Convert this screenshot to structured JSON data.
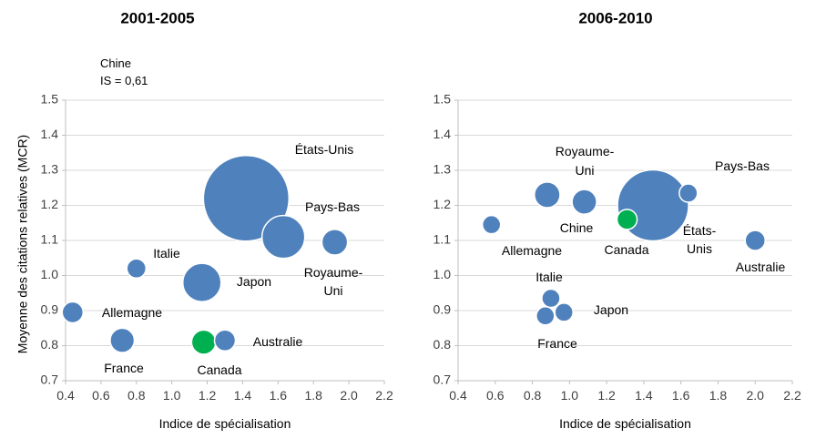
{
  "chart_data": [
    {
      "type": "scatter",
      "title": "2001-2005",
      "xlabel": "Indice de spécialisation",
      "ylabel": "Moyenne des citations relatives (MCR)",
      "xlim": [
        0.4,
        2.2
      ],
      "ylim": [
        0.7,
        1.5
      ],
      "xticks": [
        "0.4",
        "0.6",
        "0.8",
        "1.0",
        "1.2",
        "1.4",
        "1.6",
        "1.8",
        "2.0",
        "2.2"
      ],
      "yticks": [
        "0.7",
        "0.8",
        "0.9",
        "1.0",
        "1.1",
        "1.2",
        "1.3",
        "1.4",
        "1.5"
      ],
      "grid": true,
      "note_lines": [
        "Chine",
        "IS = 0,61"
      ],
      "points": [
        {
          "label": "États-Unis",
          "x": 1.42,
          "y": 1.22,
          "size": 1.0,
          "color": "#4f81bd"
        },
        {
          "label": "Pays-Bas",
          "x": 1.63,
          "y": 1.11,
          "size": 0.25,
          "color": "#4f81bd"
        },
        {
          "label": "Royaume-Uni",
          "x": 1.92,
          "y": 1.095,
          "size": 0.09,
          "color": "#4f81bd"
        },
        {
          "label": "Japon",
          "x": 1.17,
          "y": 0.98,
          "size": 0.2,
          "color": "#4f81bd"
        },
        {
          "label": "Italie",
          "x": 0.8,
          "y": 1.02,
          "size": 0.05,
          "color": "#4f81bd"
        },
        {
          "label": "Allemagne",
          "x": 0.44,
          "y": 0.895,
          "size": 0.06,
          "color": "#4f81bd"
        },
        {
          "label": "France",
          "x": 0.72,
          "y": 0.815,
          "size": 0.08,
          "color": "#4f81bd"
        },
        {
          "label": "Canada",
          "x": 1.18,
          "y": 0.81,
          "size": 0.08,
          "color": "#00b050"
        },
        {
          "label": "Australie",
          "x": 1.3,
          "y": 0.815,
          "size": 0.06,
          "color": "#4f81bd"
        }
      ]
    },
    {
      "type": "scatter",
      "title": "2006-2010",
      "xlabel": "Indice de spécialisation",
      "ylabel": "",
      "xlim": [
        0.4,
        2.2
      ],
      "ylim": [
        0.7,
        1.5
      ],
      "xticks": [
        "0.4",
        "0.6",
        "0.8",
        "1.0",
        "1.2",
        "1.4",
        "1.6",
        "1.8",
        "2.0",
        "2.2"
      ],
      "yticks": [
        "0.7",
        "0.8",
        "0.9",
        "1.0",
        "1.1",
        "1.2",
        "1.3",
        "1.4",
        "1.5"
      ],
      "grid": true,
      "points": [
        {
          "label": "États-Unis",
          "x": 1.45,
          "y": 1.2,
          "size": 1.0,
          "color": "#4f81bd"
        },
        {
          "label": "Royaume-Uni",
          "x": 0.88,
          "y": 1.23,
          "size": 0.13,
          "color": "#4f81bd"
        },
        {
          "label": "Chine",
          "x": 1.08,
          "y": 1.21,
          "size": 0.12,
          "color": "#4f81bd"
        },
        {
          "label": "Canada",
          "x": 1.31,
          "y": 1.16,
          "size": 0.08,
          "color": "#00b050"
        },
        {
          "label": "Pays-Bas",
          "x": 1.64,
          "y": 1.235,
          "size": 0.05,
          "color": "#4f81bd"
        },
        {
          "label": "Allemagne",
          "x": 0.58,
          "y": 1.145,
          "size": 0.05,
          "color": "#4f81bd"
        },
        {
          "label": "Australie",
          "x": 2.0,
          "y": 1.1,
          "size": 0.08,
          "color": "#4f81bd"
        },
        {
          "label": "Italie",
          "x": 0.9,
          "y": 0.935,
          "size": 0.04,
          "color": "#4f81bd"
        },
        {
          "label": "Japon",
          "x": 0.97,
          "y": 0.895,
          "size": 0.06,
          "color": "#4f81bd"
        },
        {
          "label": "France",
          "x": 0.87,
          "y": 0.885,
          "size": 0.05,
          "color": "#4f81bd"
        }
      ]
    }
  ]
}
